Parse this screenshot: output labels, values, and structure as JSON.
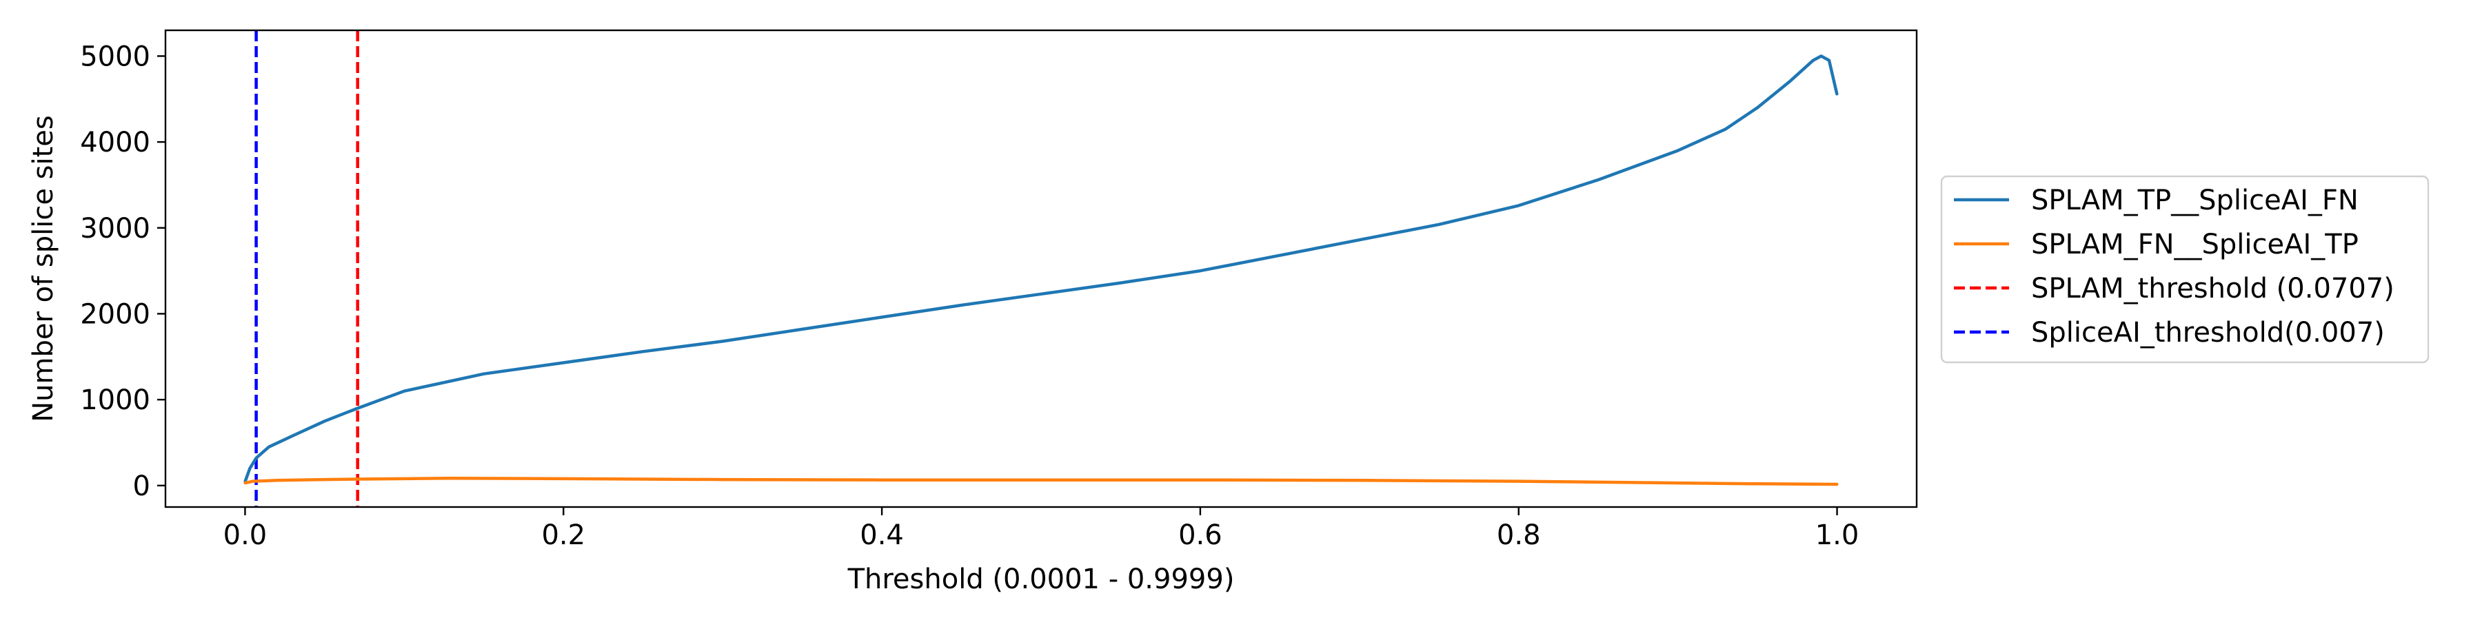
{
  "chart_data": {
    "type": "line",
    "title": "",
    "xlabel": "Threshold (0.0001 - 0.9999)",
    "ylabel": "Number of splice sites",
    "xlim": [
      -0.05,
      1.05
    ],
    "ylim": [
      -250,
      5300
    ],
    "xticks": [
      0.0,
      0.2,
      0.4,
      0.6,
      0.8,
      1.0
    ],
    "xtick_labels": [
      "0.0",
      "0.2",
      "0.4",
      "0.6",
      "0.8",
      "1.0"
    ],
    "yticks": [
      0,
      1000,
      2000,
      3000,
      4000,
      5000
    ],
    "ytick_labels": [
      "0",
      "1000",
      "2000",
      "3000",
      "4000",
      "5000"
    ],
    "grid": false,
    "legend_position": "outside-right",
    "series": [
      {
        "name": "SPLAM_TP__SpliceAI_FN",
        "color": "#1f77b4",
        "style": "solid",
        "x": [
          0.0001,
          0.003,
          0.007,
          0.015,
          0.03,
          0.05,
          0.0707,
          0.1,
          0.15,
          0.2,
          0.25,
          0.3,
          0.35,
          0.4,
          0.45,
          0.5,
          0.55,
          0.6,
          0.65,
          0.7,
          0.75,
          0.8,
          0.85,
          0.9,
          0.93,
          0.95,
          0.97,
          0.985,
          0.99,
          0.995,
          0.9999
        ],
        "y": [
          50,
          200,
          320,
          450,
          580,
          750,
          900,
          1100,
          1300,
          1430,
          1560,
          1680,
          1820,
          1960,
          2100,
          2230,
          2360,
          2500,
          2680,
          2860,
          3040,
          3260,
          3560,
          3900,
          4150,
          4400,
          4700,
          4950,
          5000,
          4950,
          4560
        ]
      },
      {
        "name": "SPLAM_FN__SpliceAI_TP",
        "color": "#ff7f0e",
        "style": "solid",
        "x": [
          0.0001,
          0.005,
          0.02,
          0.05,
          0.0707,
          0.1,
          0.13,
          0.2,
          0.3,
          0.4,
          0.5,
          0.6,
          0.7,
          0.8,
          0.9,
          0.95,
          0.9999
        ],
        "y": [
          30,
          50,
          60,
          70,
          75,
          80,
          85,
          80,
          70,
          65,
          65,
          65,
          60,
          50,
          30,
          20,
          15
        ]
      }
    ],
    "vlines": [
      {
        "name": "SPLAM_threshold (0.0707)",
        "x": 0.0707,
        "color": "#ff0000",
        "style": "dashed"
      },
      {
        "name": "SpliceAI_threshold(0.007)",
        "x": 0.007,
        "color": "#0000ff",
        "style": "dashed"
      }
    ],
    "legend": [
      {
        "label": "SPLAM_TP__SpliceAI_FN",
        "color": "#1f77b4",
        "style": "solid"
      },
      {
        "label": "SPLAM_FN__SpliceAI_TP",
        "color": "#ff7f0e",
        "style": "solid"
      },
      {
        "label": "SPLAM_threshold (0.0707)",
        "color": "#ff0000",
        "style": "dashed"
      },
      {
        "label": "SpliceAI_threshold(0.007)",
        "color": "#0000ff",
        "style": "dashed"
      }
    ]
  }
}
